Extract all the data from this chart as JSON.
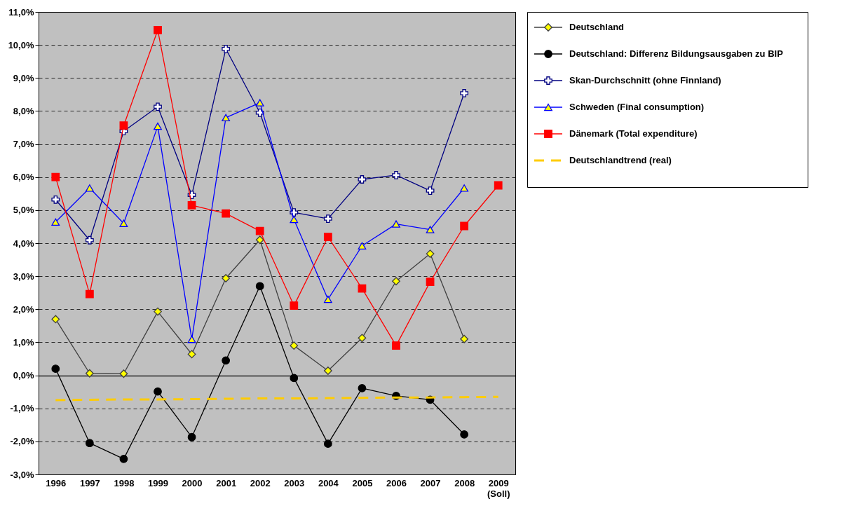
{
  "chart_data": {
    "type": "line",
    "categories": [
      "1996",
      "1997",
      "1998",
      "1999",
      "2000",
      "2001",
      "2002",
      "2003",
      "2004",
      "2005",
      "2006",
      "2007",
      "2008",
      "2009 (Soll)"
    ],
    "ylim": [
      -3,
      11
    ],
    "yticks": [
      {
        "value": -3,
        "label": "-3,0%"
      },
      {
        "value": -2,
        "label": "-2,0%"
      },
      {
        "value": -1,
        "label": "-1,0%"
      },
      {
        "value": 0,
        "label": "0,0%"
      },
      {
        "value": 1,
        "label": "1,0%"
      },
      {
        "value": 2,
        "label": "2,0%"
      },
      {
        "value": 3,
        "label": "3,0%"
      },
      {
        "value": 4,
        "label": "4,0%"
      },
      {
        "value": 5,
        "label": "5,0%"
      },
      {
        "value": 6,
        "label": "6,0%"
      },
      {
        "value": 7,
        "label": "7,0%"
      },
      {
        "value": 8,
        "label": "8,0%"
      },
      {
        "value": 9,
        "label": "9,0%"
      },
      {
        "value": 10,
        "label": "10,0%"
      },
      {
        "value": 11,
        "label": "11,0%"
      }
    ],
    "grid": "y",
    "legend": "right",
    "series": [
      {
        "name": "Deutschland",
        "color": "#404040",
        "marker": "diamond",
        "values": [
          1.7,
          0.06,
          0.05,
          1.93,
          0.64,
          2.94,
          4.1,
          0.9,
          0.14,
          1.13,
          2.85,
          3.68,
          1.1,
          null
        ]
      },
      {
        "name": "Deutschland: Differenz Bildungsausgaben zu BIP",
        "color": "#000000",
        "marker": "circle",
        "values": [
          0.2,
          -2.05,
          -2.53,
          -0.49,
          -1.87,
          0.45,
          2.7,
          -0.08,
          -2.07,
          -0.39,
          -0.62,
          -0.74,
          -1.79,
          null
        ]
      },
      {
        "name": "Skan-Durchschnitt (ohne Finnland)",
        "color": "#000080",
        "marker": "cross",
        "values": [
          5.32,
          4.09,
          7.39,
          8.13,
          5.46,
          9.88,
          7.95,
          4.93,
          4.74,
          5.93,
          6.06,
          5.59,
          8.54,
          null
        ]
      },
      {
        "name": "Schweden (Final consumption)",
        "color": "#0000ff",
        "marker": "triangle",
        "values": [
          4.64,
          5.67,
          4.6,
          7.54,
          1.09,
          7.8,
          8.25,
          4.72,
          2.3,
          3.92,
          4.58,
          4.41,
          5.67,
          null
        ]
      },
      {
        "name": "Dänemark (Total expenditure)",
        "color": "#ff0000",
        "marker": "square",
        "values": [
          6.0,
          2.46,
          7.56,
          10.45,
          5.15,
          4.9,
          4.37,
          2.11,
          4.19,
          2.63,
          0.9,
          2.83,
          4.52,
          5.75
        ]
      },
      {
        "name": "Deutschlandtrend (real)",
        "color": "#ffcc00",
        "marker": "none",
        "line_style": "dashed",
        "values": [
          -0.75,
          -0.74,
          -0.73,
          -0.73,
          -0.72,
          -0.71,
          -0.7,
          -0.7,
          -0.69,
          -0.68,
          -0.67,
          -0.67,
          -0.66,
          -0.65
        ]
      }
    ]
  }
}
